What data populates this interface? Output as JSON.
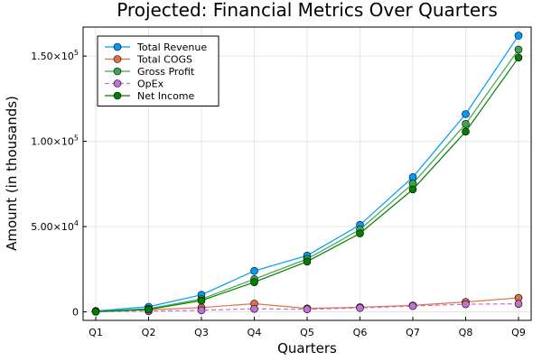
{
  "chart_data": {
    "type": "line",
    "title": "Projected: Financial Metrics Over Quarters",
    "xlabel": "Quarters",
    "ylabel": "Amount (in thousands)",
    "categories": [
      "Q1",
      "Q2",
      "Q3",
      "Q4",
      "Q5",
      "Q6",
      "Q7",
      "Q8",
      "Q9"
    ],
    "ylim": [
      -5000,
      167000
    ],
    "yticks": [
      {
        "value": 0,
        "mantissa": "0",
        "exp": ""
      },
      {
        "value": 50000,
        "mantissa": "5.00×10",
        "exp": "4"
      },
      {
        "value": 100000,
        "mantissa": "1.00×10",
        "exp": "5"
      },
      {
        "value": 150000,
        "mantissa": "1.50×10",
        "exp": "5"
      }
    ],
    "grid": true,
    "legend_position": "top-left",
    "series": [
      {
        "name": "Total Revenue",
        "color": "#009AFA",
        "dashed": false,
        "values": [
          500,
          3000,
          10000,
          24000,
          33000,
          51000,
          79000,
          116000,
          162000
        ]
      },
      {
        "name": "Total COGS",
        "color": "#E36F47",
        "dashed": false,
        "values": [
          300,
          1200,
          2500,
          4800,
          2000,
          2700,
          3800,
          5800,
          8200
        ]
      },
      {
        "name": "Gross Profit",
        "color": "#3EA44E",
        "dashed": false,
        "values": [
          200,
          1800,
          7500,
          19200,
          31000,
          48300,
          75200,
          110200,
          153800
        ]
      },
      {
        "name": "OpEx",
        "color": "#C271D2",
        "dashed": true,
        "values": [
          100,
          400,
          900,
          1800,
          1500,
          2300,
          3400,
          4500,
          4700
        ]
      },
      {
        "name": "Net Income",
        "color": "#008000",
        "dashed": false,
        "values": [
          100,
          1400,
          6600,
          17400,
          29500,
          46000,
          71800,
          105700,
          149100
        ]
      }
    ]
  }
}
